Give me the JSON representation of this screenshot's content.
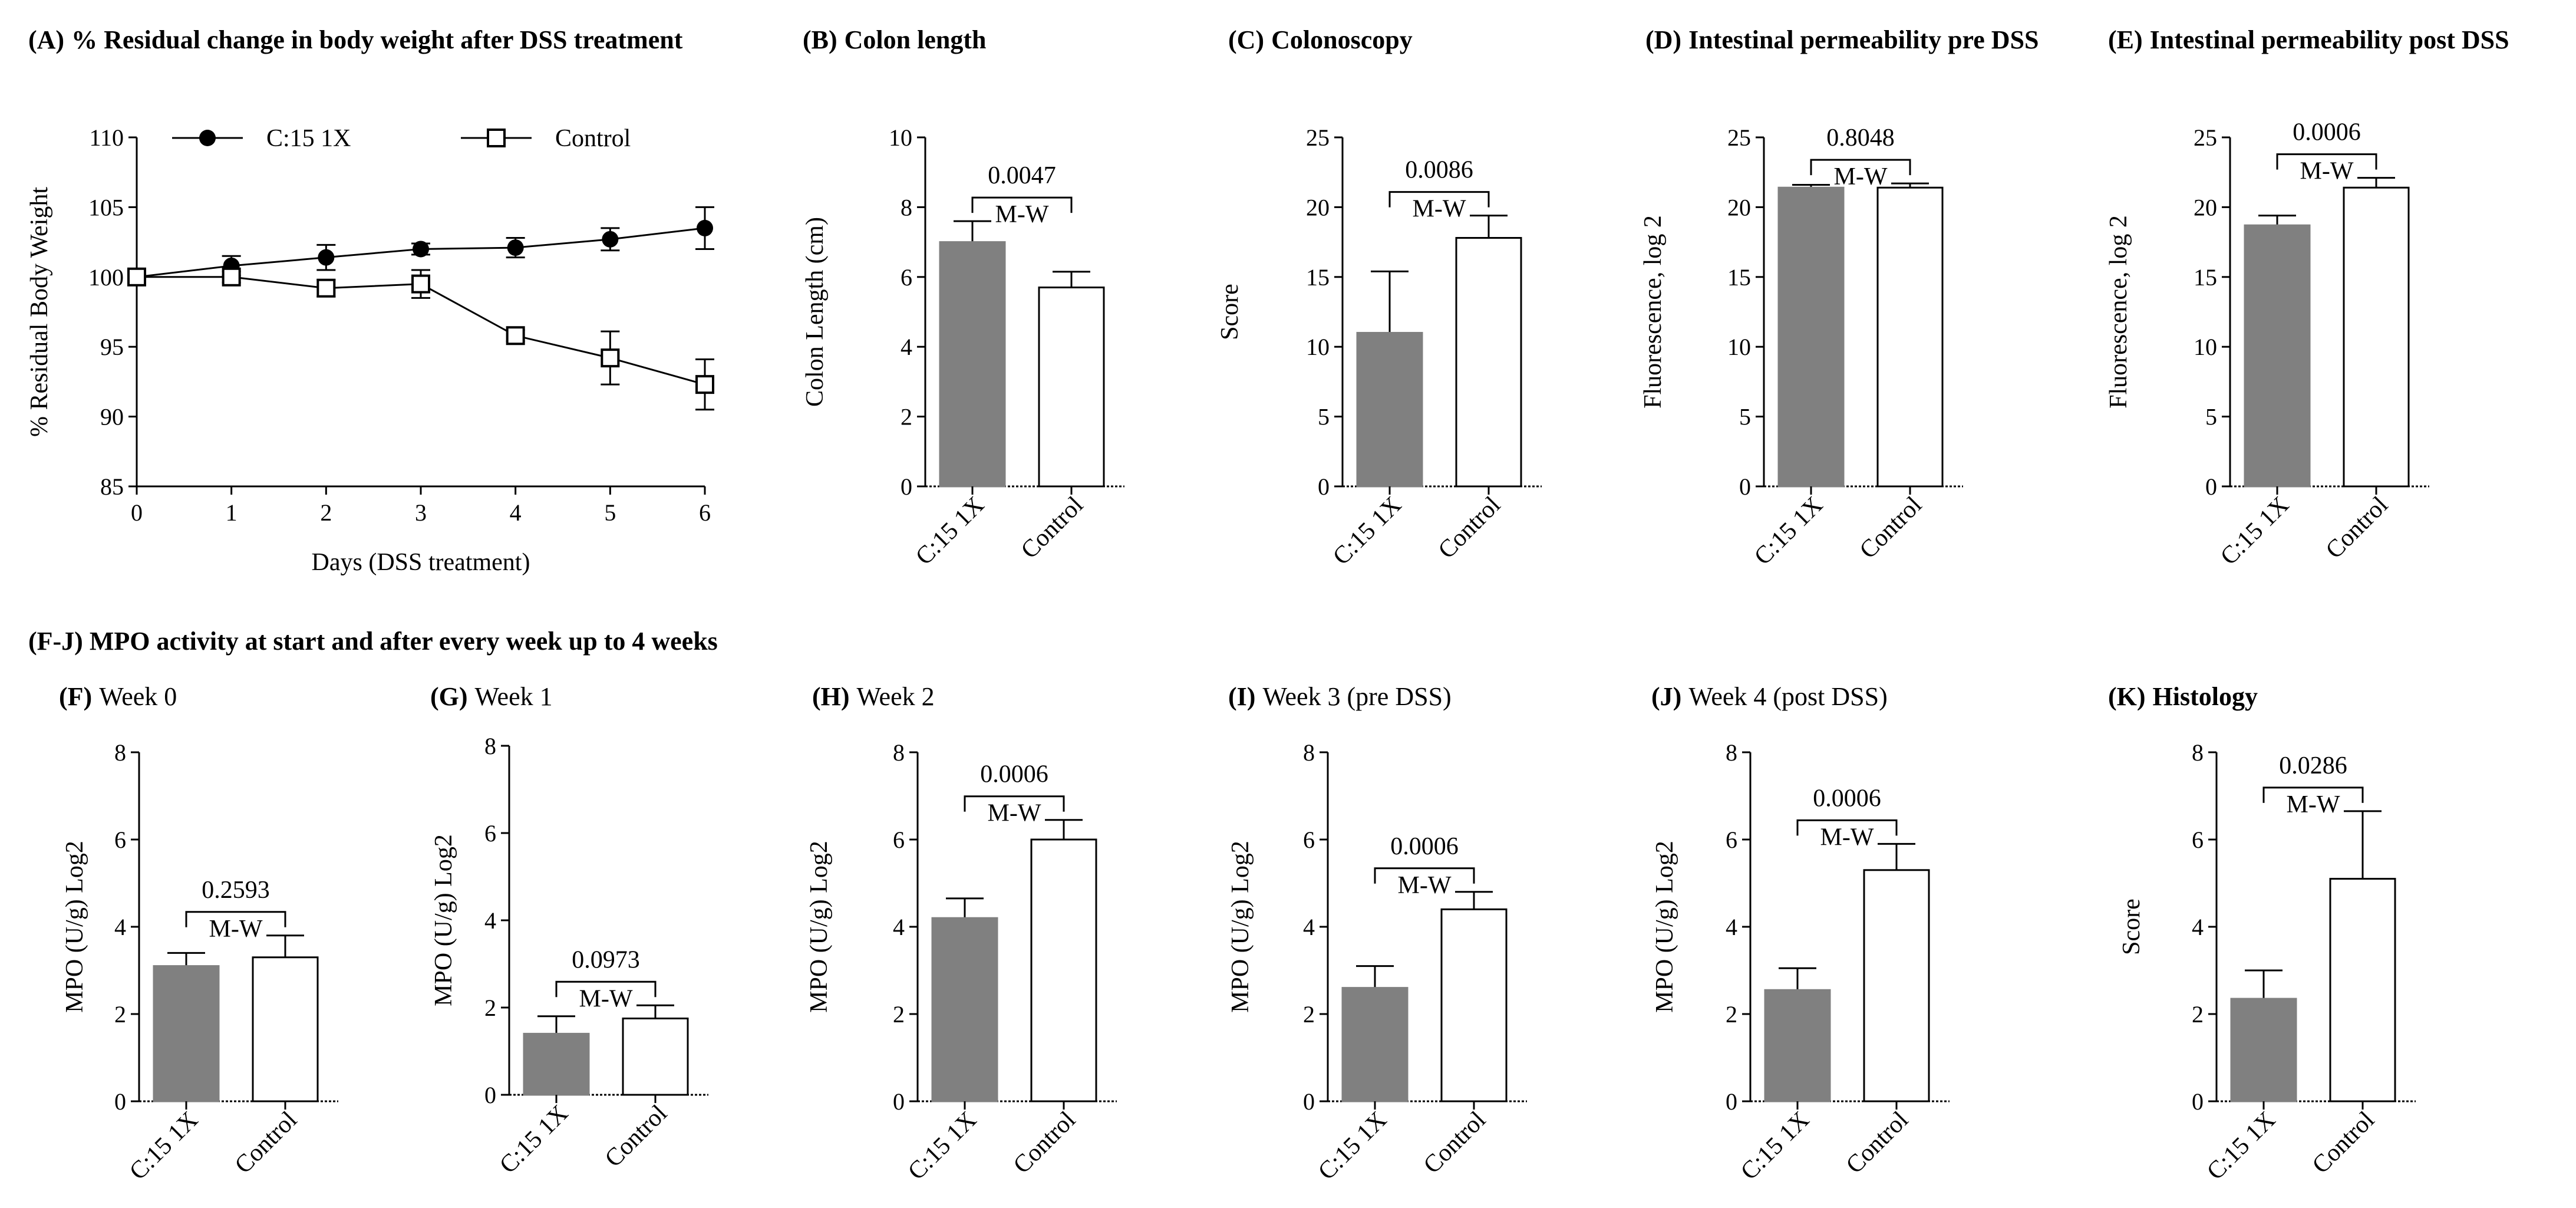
{
  "figure": {
    "section_fj_title": "(F-J) MPO activity at start and after every week up to 4 weeks"
  },
  "colors": {
    "treated_fill": "#808080",
    "control_fill": "#ffffff",
    "stroke": "#000000"
  },
  "chart_data": [
    {
      "id": "A",
      "type": "line",
      "title_tag": "(A)",
      "title": "% Residual change in body weight after DSS treatment",
      "title_bold": true,
      "xlabel": "Days (DSS treatment)",
      "ylabel": "% Residual Body Weight",
      "x": [
        0,
        1,
        2,
        3,
        4,
        5,
        6
      ],
      "xlim": [
        0,
        6
      ],
      "ylim": [
        85,
        110
      ],
      "xticks": [
        0,
        1,
        2,
        3,
        4,
        5,
        6
      ],
      "yticks": [
        85,
        90,
        95,
        100,
        105,
        110
      ],
      "legend_placement": "top",
      "series": [
        {
          "name": "C:15 1X",
          "marker": "filled-circle",
          "values": [
            100,
            100.8,
            101.4,
            102.0,
            102.1,
            102.7,
            103.5
          ],
          "errors": [
            0.4,
            0.7,
            0.9,
            0.4,
            0.7,
            0.8,
            1.5
          ]
        },
        {
          "name": "Control",
          "marker": "open-square",
          "values": [
            100,
            100.0,
            99.2,
            99.5,
            95.8,
            94.2,
            92.3
          ],
          "errors": [
            0.4,
            0.4,
            0.6,
            1.0,
            0.4,
            1.9,
            1.8
          ]
        }
      ]
    },
    {
      "id": "B",
      "type": "bar",
      "title_tag": "(B)",
      "title": "Colon length",
      "title_bold": true,
      "ylabel": "Colon Length (cm)",
      "ylim": [
        0,
        10
      ],
      "yticks": [
        0,
        2,
        4,
        6,
        8,
        10
      ],
      "categories": [
        "C:15 1X",
        "Control"
      ],
      "values": [
        7.0,
        5.7
      ],
      "errors": [
        0.6,
        0.45
      ],
      "test": "M-W",
      "p_value": "0.0047"
    },
    {
      "id": "C",
      "type": "bar",
      "title_tag": "(C)",
      "title": "Colonoscopy",
      "title_bold": true,
      "ylabel": "Score",
      "ylim": [
        0,
        25
      ],
      "yticks": [
        0,
        5,
        10,
        15,
        20,
        25
      ],
      "categories": [
        "C:15 1X",
        "Control"
      ],
      "values": [
        11.0,
        17.8
      ],
      "errors": [
        4.4,
        1.6
      ],
      "test": "M-W",
      "p_value": "0.0086"
    },
    {
      "id": "D",
      "type": "bar",
      "title_tag": "(D)",
      "title": "Intestinal permeability pre DSS",
      "title_bold": true,
      "ylabel": "Fluorescence, log 2",
      "ylim": [
        0,
        25
      ],
      "yticks": [
        0,
        5,
        10,
        15,
        20,
        25
      ],
      "categories": [
        "C:15 1X",
        "Control"
      ],
      "values": [
        21.4,
        21.4
      ],
      "errors": [
        0.2,
        0.3
      ],
      "test": "M-W",
      "p_value": "0.8048"
    },
    {
      "id": "E",
      "type": "bar",
      "title_tag": "(E)",
      "title": "Intestinal permeability post DSS",
      "title_bold": true,
      "ylabel": "Fluorescence, log 2",
      "ylim": [
        0,
        25
      ],
      "yticks": [
        0,
        5,
        10,
        15,
        20,
        25
      ],
      "categories": [
        "C:15 1X",
        "Control"
      ],
      "values": [
        18.7,
        21.4
      ],
      "errors": [
        0.7,
        0.7
      ],
      "test": "M-W",
      "p_value": "0.0006"
    },
    {
      "id": "F",
      "type": "bar",
      "title_tag": "(F)",
      "title": "Week 0",
      "title_bold": false,
      "ylabel": "MPO (U/g) Log2",
      "ylim": [
        0,
        8
      ],
      "yticks": [
        0,
        2,
        4,
        6,
        8
      ],
      "categories": [
        "C:15 1X",
        "Control"
      ],
      "values": [
        3.1,
        3.3
      ],
      "errors": [
        0.3,
        0.5
      ],
      "test": "M-W",
      "p_value": "0.2593"
    },
    {
      "id": "G",
      "type": "bar",
      "title_tag": "(G)",
      "title": "Week 1",
      "title_bold": false,
      "ylabel": "MPO (U/g) Log2",
      "ylim": [
        0,
        8
      ],
      "yticks": [
        0,
        2,
        4,
        6,
        8
      ],
      "categories": [
        "C:15 1X",
        "Control"
      ],
      "values": [
        1.4,
        1.75
      ],
      "errors": [
        0.4,
        0.3
      ],
      "test": "M-W",
      "p_value": "0.0973"
    },
    {
      "id": "H",
      "type": "bar",
      "title_tag": "(H)",
      "title": "Week 2",
      "title_bold": false,
      "ylabel": "MPO (U/g) Log2",
      "ylim": [
        0,
        8
      ],
      "yticks": [
        0,
        2,
        4,
        6,
        8
      ],
      "categories": [
        "C:15 1X",
        "Control"
      ],
      "values": [
        4.2,
        6.0
      ],
      "errors": [
        0.45,
        0.45
      ],
      "test": "M-W",
      "p_value": "0.0006"
    },
    {
      "id": "I",
      "type": "bar",
      "title_tag": "(I)",
      "title": "Week 3 (pre DSS)",
      "title_bold": false,
      "ylabel": "MPO (U/g) Log2",
      "ylim": [
        0,
        8
      ],
      "yticks": [
        0,
        2,
        4,
        6,
        8
      ],
      "categories": [
        "C:15 1X",
        "Control"
      ],
      "values": [
        2.6,
        4.4
      ],
      "errors": [
        0.5,
        0.4
      ],
      "test": "M-W",
      "p_value": "0.0006"
    },
    {
      "id": "J",
      "type": "bar",
      "title_tag": "(J)",
      "title": "Week 4 (post DSS)",
      "title_bold": false,
      "ylabel": "MPO (U/g) Log2",
      "ylim": [
        0,
        8
      ],
      "yticks": [
        0,
        2,
        4,
        6,
        8
      ],
      "categories": [
        "C:15 1X",
        "Control"
      ],
      "values": [
        2.55,
        5.3
      ],
      "errors": [
        0.5,
        0.6
      ],
      "test": "M-W",
      "p_value": "0.0006"
    },
    {
      "id": "K",
      "type": "bar",
      "title_tag": "(K)",
      "title": "Histology",
      "title_bold": true,
      "ylabel": "Score",
      "ylim": [
        0,
        8
      ],
      "yticks": [
        0,
        2,
        4,
        6,
        8
      ],
      "categories": [
        "C:15 1X",
        "Control"
      ],
      "values": [
        2.35,
        5.1
      ],
      "errors": [
        0.65,
        1.55
      ],
      "test": "M-W",
      "p_value": "0.0286"
    }
  ]
}
